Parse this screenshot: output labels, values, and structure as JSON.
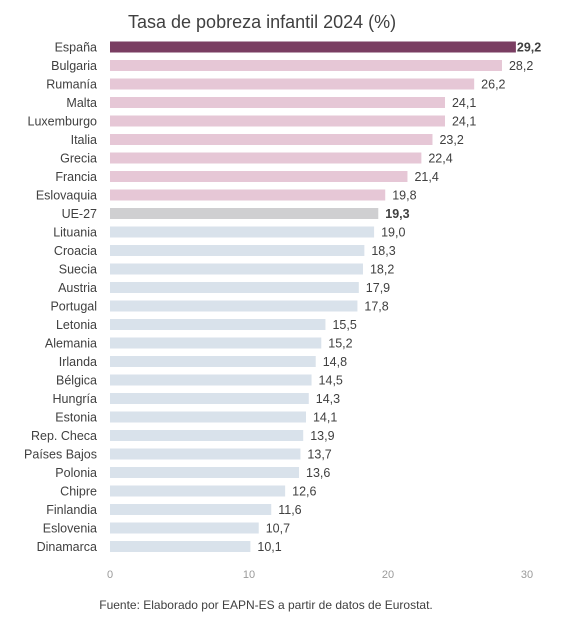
{
  "colors": {
    "highlight": "#7a3e62",
    "group_high": "#e6c7d6",
    "eu_average": "#cfcfd1",
    "group_low": "#d9e2eb",
    "text": "#404040",
    "axis_text": "#9a9a9a"
  },
  "chart_data": {
    "type": "bar",
    "orientation": "horizontal",
    "title": "Tasa de pobreza infantil 2024 (%)",
    "source": "Fuente: Elaborado por EAPN-ES a partir de datos de Eurostat.",
    "categories": [
      "España",
      "Bulgaria",
      "Rumanía",
      "Malta",
      "Luxemburgo",
      "Italia",
      "Grecia",
      "Francia",
      "Eslovaquia",
      "UE-27",
      "Lituania",
      "Croacia",
      "Suecia",
      "Austria",
      "Portugal",
      "Letonia",
      "Alemania",
      "Irlanda",
      "Bélgica",
      "Hungría",
      "Estonia",
      "Rep. Checa",
      "Países Bajos",
      "Polonia",
      "Chipre",
      "Finlandia",
      "Eslovenia",
      "Dinamarca"
    ],
    "values": [
      29.2,
      28.2,
      26.2,
      24.1,
      24.1,
      23.2,
      22.4,
      21.4,
      19.8,
      19.3,
      19.0,
      18.3,
      18.2,
      17.9,
      17.8,
      15.5,
      15.2,
      14.8,
      14.5,
      14.3,
      14.1,
      13.9,
      13.7,
      13.6,
      12.6,
      11.6,
      10.7,
      10.1
    ],
    "value_labels": [
      "29,2",
      "28,2",
      "26,2",
      "24,1",
      "24,1",
      "23,2",
      "22,4",
      "21,4",
      "19,8",
      "19,3",
      "19,0",
      "18,3",
      "18,2",
      "17,9",
      "17,8",
      "15,5",
      "15,2",
      "14,8",
      "14,5",
      "14,3",
      "14,1",
      "13,9",
      "13,7",
      "13,6",
      "12,6",
      "11,6",
      "10,7",
      "10,1"
    ],
    "bar_group": [
      "highlight",
      "high",
      "high",
      "high",
      "high",
      "high",
      "high",
      "high",
      "high",
      "eu",
      "low",
      "low",
      "low",
      "low",
      "low",
      "low",
      "low",
      "low",
      "low",
      "low",
      "low",
      "low",
      "low",
      "low",
      "low",
      "low",
      "low",
      "low"
    ],
    "bold_labels": [
      "España",
      "UE-27"
    ],
    "xlim": [
      0,
      30
    ],
    "xticks": [
      0,
      10,
      20,
      30
    ],
    "xtick_labels": [
      "0",
      "10",
      "20",
      "30"
    ],
    "grid": false,
    "legend": "none"
  }
}
